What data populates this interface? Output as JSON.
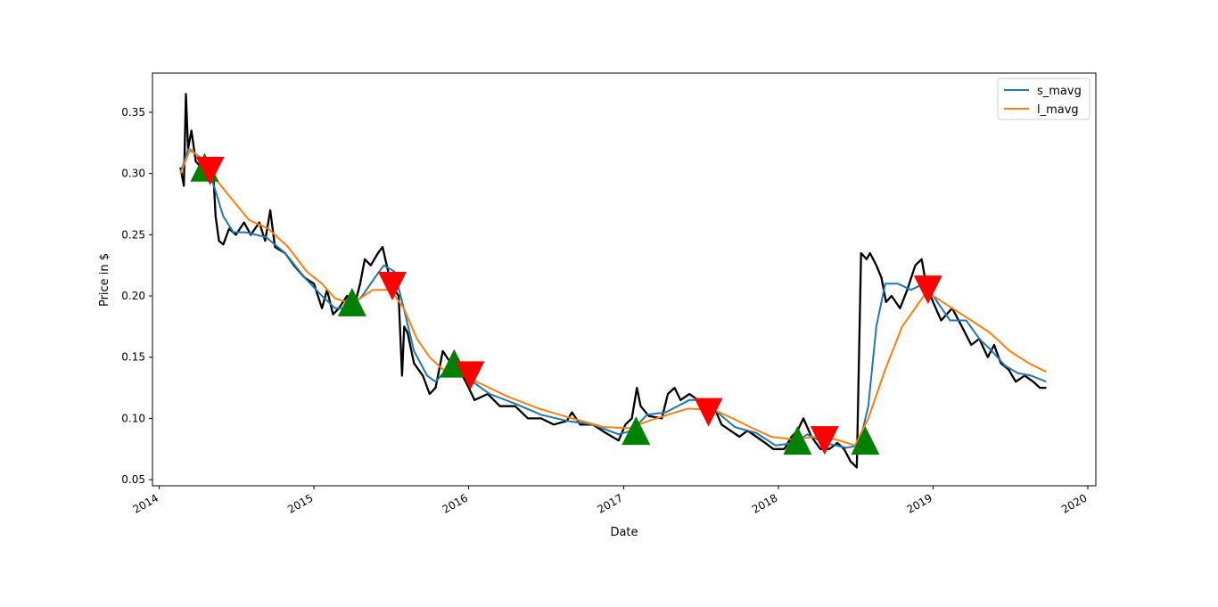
{
  "chart_data": {
    "type": "line",
    "xlabel": "Date",
    "ylabel": "Price in $",
    "xlim": [
      "2013-12-16",
      "2020-01-20"
    ],
    "ylim": [
      0.045,
      0.382
    ],
    "grid": false,
    "legend_placement": "top-right",
    "x_ticks": [
      {
        "date": "2014-01-01",
        "label": "2014"
      },
      {
        "date": "2015-01-01",
        "label": "2015"
      },
      {
        "date": "2016-01-01",
        "label": "2016"
      },
      {
        "date": "2017-01-01",
        "label": "2017"
      },
      {
        "date": "2018-01-01",
        "label": "2018"
      },
      {
        "date": "2019-01-01",
        "label": "2019"
      },
      {
        "date": "2020-01-01",
        "label": "2020"
      }
    ],
    "y_ticks": [
      {
        "value": 0.05,
        "label": "0.05"
      },
      {
        "value": 0.1,
        "label": "0.10"
      },
      {
        "value": 0.15,
        "label": "0.15"
      },
      {
        "value": 0.2,
        "label": "0.20"
      },
      {
        "value": 0.25,
        "label": "0.25"
      },
      {
        "value": 0.3,
        "label": "0.30"
      },
      {
        "value": 0.35,
        "label": "0.35"
      }
    ],
    "price_series": {
      "color": "#000000",
      "points": [
        [
          "2014-02-20",
          0.305
        ],
        [
          "2014-02-28",
          0.29
        ],
        [
          "2014-03-05",
          0.365
        ],
        [
          "2014-03-10",
          0.32
        ],
        [
          "2014-03-18",
          0.335
        ],
        [
          "2014-03-28",
          0.31
        ],
        [
          "2014-04-10",
          0.305
        ],
        [
          "2014-04-22",
          0.3
        ],
        [
          "2014-04-30",
          0.295
        ],
        [
          "2014-05-08",
          0.303
        ],
        [
          "2014-05-14",
          0.265
        ],
        [
          "2014-05-22",
          0.245
        ],
        [
          "2014-06-01",
          0.242
        ],
        [
          "2014-06-15",
          0.255
        ],
        [
          "2014-07-01",
          0.25
        ],
        [
          "2014-07-20",
          0.26
        ],
        [
          "2014-08-05",
          0.25
        ],
        [
          "2014-08-25",
          0.26
        ],
        [
          "2014-09-08",
          0.245
        ],
        [
          "2014-09-20",
          0.27
        ],
        [
          "2014-10-01",
          0.24
        ],
        [
          "2014-10-25",
          0.235
        ],
        [
          "2014-11-15",
          0.225
        ],
        [
          "2014-12-10",
          0.215
        ],
        [
          "2015-01-01",
          0.21
        ],
        [
          "2015-01-20",
          0.19
        ],
        [
          "2015-02-01",
          0.205
        ],
        [
          "2015-02-15",
          0.185
        ],
        [
          "2015-03-01",
          0.19
        ],
        [
          "2015-03-20",
          0.2
        ],
        [
          "2015-04-05",
          0.19
        ],
        [
          "2015-04-20",
          0.21
        ],
        [
          "2015-05-01",
          0.23
        ],
        [
          "2015-05-15",
          0.225
        ],
        [
          "2015-06-01",
          0.235
        ],
        [
          "2015-06-12",
          0.24
        ],
        [
          "2015-06-25",
          0.22
        ],
        [
          "2015-07-10",
          0.205
        ],
        [
          "2015-07-20",
          0.2
        ],
        [
          "2015-07-28",
          0.135
        ],
        [
          "2015-08-02",
          0.175
        ],
        [
          "2015-08-10",
          0.17
        ],
        [
          "2015-08-25",
          0.145
        ],
        [
          "2015-09-15",
          0.135
        ],
        [
          "2015-10-01",
          0.12
        ],
        [
          "2015-10-15",
          0.125
        ],
        [
          "2015-11-01",
          0.155
        ],
        [
          "2015-11-20",
          0.145
        ],
        [
          "2015-12-10",
          0.14
        ],
        [
          "2015-12-28",
          0.128
        ],
        [
          "2016-01-15",
          0.115
        ],
        [
          "2016-02-15",
          0.12
        ],
        [
          "2016-03-15",
          0.11
        ],
        [
          "2016-04-20",
          0.11
        ],
        [
          "2016-05-20",
          0.1
        ],
        [
          "2016-06-20",
          0.1
        ],
        [
          "2016-07-20",
          0.095
        ],
        [
          "2016-08-20",
          0.098
        ],
        [
          "2016-09-01",
          0.105
        ],
        [
          "2016-09-20",
          0.095
        ],
        [
          "2016-10-20",
          0.095
        ],
        [
          "2016-11-20",
          0.088
        ],
        [
          "2016-12-20",
          0.082
        ],
        [
          "2017-01-05",
          0.095
        ],
        [
          "2017-01-20",
          0.1
        ],
        [
          "2017-02-01",
          0.125
        ],
        [
          "2017-02-10",
          0.11
        ],
        [
          "2017-03-01",
          0.102
        ],
        [
          "2017-04-01",
          0.1
        ],
        [
          "2017-04-15",
          0.12
        ],
        [
          "2017-05-01",
          0.125
        ],
        [
          "2017-05-15",
          0.115
        ],
        [
          "2017-06-05",
          0.12
        ],
        [
          "2017-06-25",
          0.115
        ],
        [
          "2017-07-10",
          0.11
        ],
        [
          "2017-08-01",
          0.11
        ],
        [
          "2017-08-20",
          0.095
        ],
        [
          "2017-09-10",
          0.09
        ],
        [
          "2017-10-01",
          0.085
        ],
        [
          "2017-10-20",
          0.09
        ],
        [
          "2017-11-10",
          0.085
        ],
        [
          "2017-12-01",
          0.08
        ],
        [
          "2017-12-20",
          0.075
        ],
        [
          "2018-01-15",
          0.075
        ],
        [
          "2018-02-01",
          0.085
        ],
        [
          "2018-02-15",
          0.09
        ],
        [
          "2018-03-01",
          0.1
        ],
        [
          "2018-03-20",
          0.085
        ],
        [
          "2018-04-10",
          0.075
        ],
        [
          "2018-05-01",
          0.075
        ],
        [
          "2018-05-20",
          0.08
        ],
        [
          "2018-06-05",
          0.075
        ],
        [
          "2018-06-20",
          0.065
        ],
        [
          "2018-07-05",
          0.06
        ],
        [
          "2018-07-15",
          0.235
        ],
        [
          "2018-07-28",
          0.23
        ],
        [
          "2018-08-05",
          0.235
        ],
        [
          "2018-08-20",
          0.225
        ],
        [
          "2018-09-01",
          0.215
        ],
        [
          "2018-09-12",
          0.195
        ],
        [
          "2018-09-25",
          0.2
        ],
        [
          "2018-10-15",
          0.19
        ],
        [
          "2018-11-01",
          0.205
        ],
        [
          "2018-11-20",
          0.225
        ],
        [
          "2018-12-05",
          0.23
        ],
        [
          "2018-12-15",
          0.21
        ],
        [
          "2019-01-01",
          0.195
        ],
        [
          "2019-01-20",
          0.18
        ],
        [
          "2019-02-15",
          0.19
        ],
        [
          "2019-03-10",
          0.175
        ],
        [
          "2019-04-01",
          0.16
        ],
        [
          "2019-04-20",
          0.165
        ],
        [
          "2019-05-10",
          0.15
        ],
        [
          "2019-05-25",
          0.16
        ],
        [
          "2019-06-10",
          0.145
        ],
        [
          "2019-06-28",
          0.14
        ],
        [
          "2019-07-15",
          0.13
        ],
        [
          "2019-08-05",
          0.135
        ],
        [
          "2019-08-25",
          0.13
        ],
        [
          "2019-09-10",
          0.125
        ],
        [
          "2019-09-25",
          0.125
        ]
      ]
    },
    "series": [
      {
        "name": "s_mavg",
        "color": "#1f77b4",
        "points": [
          [
            "2014-02-20",
            0.3
          ],
          [
            "2014-03-10",
            0.32
          ],
          [
            "2014-04-01",
            0.315
          ],
          [
            "2014-04-20",
            0.31
          ],
          [
            "2014-05-10",
            0.29
          ],
          [
            "2014-06-01",
            0.265
          ],
          [
            "2014-06-25",
            0.252
          ],
          [
            "2014-07-25",
            0.252
          ],
          [
            "2014-09-10",
            0.248
          ],
          [
            "2014-10-25",
            0.235
          ],
          [
            "2014-12-10",
            0.215
          ],
          [
            "2015-01-20",
            0.2
          ],
          [
            "2015-02-20",
            0.19
          ],
          [
            "2015-03-25",
            0.19
          ],
          [
            "2015-04-25",
            0.2
          ],
          [
            "2015-05-25",
            0.215
          ],
          [
            "2015-06-15",
            0.225
          ],
          [
            "2015-07-10",
            0.22
          ],
          [
            "2015-08-01",
            0.19
          ],
          [
            "2015-08-25",
            0.155
          ],
          [
            "2015-09-25",
            0.135
          ],
          [
            "2015-10-15",
            0.13
          ],
          [
            "2015-11-10",
            0.14
          ],
          [
            "2015-12-05",
            0.142
          ],
          [
            "2016-01-10",
            0.13
          ],
          [
            "2016-02-20",
            0.12
          ],
          [
            "2016-04-20",
            0.112
          ],
          [
            "2016-06-20",
            0.103
          ],
          [
            "2016-08-20",
            0.098
          ],
          [
            "2016-10-20",
            0.095
          ],
          [
            "2016-12-20",
            0.087
          ],
          [
            "2017-01-20",
            0.09
          ],
          [
            "2017-02-25",
            0.103
          ],
          [
            "2017-04-10",
            0.105
          ],
          [
            "2017-06-05",
            0.115
          ],
          [
            "2017-07-10",
            0.115
          ],
          [
            "2017-08-10",
            0.105
          ],
          [
            "2017-09-20",
            0.093
          ],
          [
            "2017-11-10",
            0.088
          ],
          [
            "2017-12-25",
            0.078
          ],
          [
            "2018-02-10",
            0.08
          ],
          [
            "2018-03-10",
            0.087
          ],
          [
            "2018-04-20",
            0.08
          ],
          [
            "2018-06-10",
            0.076
          ],
          [
            "2018-07-10",
            0.078
          ],
          [
            "2018-08-01",
            0.11
          ],
          [
            "2018-08-20",
            0.175
          ],
          [
            "2018-09-10",
            0.21
          ],
          [
            "2018-10-10",
            0.21
          ],
          [
            "2018-11-10",
            0.205
          ],
          [
            "2018-12-10",
            0.21
          ],
          [
            "2019-01-01",
            0.2
          ],
          [
            "2019-02-10",
            0.18
          ],
          [
            "2019-03-20",
            0.18
          ],
          [
            "2019-04-20",
            0.165
          ],
          [
            "2019-05-20",
            0.155
          ],
          [
            "2019-06-20",
            0.143
          ],
          [
            "2019-07-20",
            0.137
          ],
          [
            "2019-08-20",
            0.135
          ],
          [
            "2019-09-25",
            0.13
          ]
        ]
      },
      {
        "name": "l_mavg",
        "color": "#ff7f0e",
        "points": [
          [
            "2014-02-20",
            0.3
          ],
          [
            "2014-03-15",
            0.32
          ],
          [
            "2014-04-15",
            0.31
          ],
          [
            "2014-05-15",
            0.295
          ],
          [
            "2014-07-01",
            0.275
          ],
          [
            "2014-08-01",
            0.262
          ],
          [
            "2014-09-15",
            0.255
          ],
          [
            "2014-11-01",
            0.24
          ],
          [
            "2014-12-15",
            0.22
          ],
          [
            "2015-01-20",
            0.21
          ],
          [
            "2015-02-20",
            0.198
          ],
          [
            "2015-03-20",
            0.195
          ],
          [
            "2015-04-20",
            0.198
          ],
          [
            "2015-05-20",
            0.205
          ],
          [
            "2015-07-01",
            0.205
          ],
          [
            "2015-08-01",
            0.19
          ],
          [
            "2015-09-01",
            0.165
          ],
          [
            "2015-10-01",
            0.15
          ],
          [
            "2015-11-01",
            0.14
          ],
          [
            "2015-12-15",
            0.135
          ],
          [
            "2016-02-01",
            0.128
          ],
          [
            "2016-04-01",
            0.118
          ],
          [
            "2016-06-15",
            0.108
          ],
          [
            "2016-09-01",
            0.1
          ],
          [
            "2016-11-15",
            0.093
          ],
          [
            "2017-01-15",
            0.092
          ],
          [
            "2017-03-01",
            0.098
          ],
          [
            "2017-04-15",
            0.103
          ],
          [
            "2017-06-01",
            0.108
          ],
          [
            "2017-08-01",
            0.107
          ],
          [
            "2017-09-15",
            0.1
          ],
          [
            "2017-11-01",
            0.092
          ],
          [
            "2017-12-15",
            0.085
          ],
          [
            "2018-02-01",
            0.083
          ],
          [
            "2018-04-01",
            0.085
          ],
          [
            "2018-05-15",
            0.083
          ],
          [
            "2018-07-01",
            0.078
          ],
          [
            "2018-08-01",
            0.1
          ],
          [
            "2018-09-10",
            0.14
          ],
          [
            "2018-10-20",
            0.175
          ],
          [
            "2018-12-10",
            0.2
          ],
          [
            "2019-01-01",
            0.2
          ],
          [
            "2019-02-15",
            0.19
          ],
          [
            "2019-04-01",
            0.18
          ],
          [
            "2019-05-15",
            0.17
          ],
          [
            "2019-07-01",
            0.155
          ],
          [
            "2019-08-15",
            0.145
          ],
          [
            "2019-09-25",
            0.138
          ]
        ]
      }
    ],
    "buy_signals": {
      "color": "#008000",
      "shape": "triangle-up",
      "points": [
        [
          "2014-04-18",
          0.305
        ],
        [
          "2015-04-01",
          0.195
        ],
        [
          "2015-11-28",
          0.145
        ],
        [
          "2017-01-30",
          0.09
        ],
        [
          "2018-02-15",
          0.082
        ],
        [
          "2018-07-25",
          0.082
        ]
      ]
    },
    "sell_signals": {
      "color": "#ff0000",
      "shape": "triangle-down",
      "points": [
        [
          "2014-05-01",
          0.302
        ],
        [
          "2015-07-05",
          0.208
        ],
        [
          "2016-01-05",
          0.135
        ],
        [
          "2017-07-20",
          0.105
        ],
        [
          "2018-04-20",
          0.082
        ],
        [
          "2018-12-20",
          0.205
        ]
      ]
    }
  }
}
